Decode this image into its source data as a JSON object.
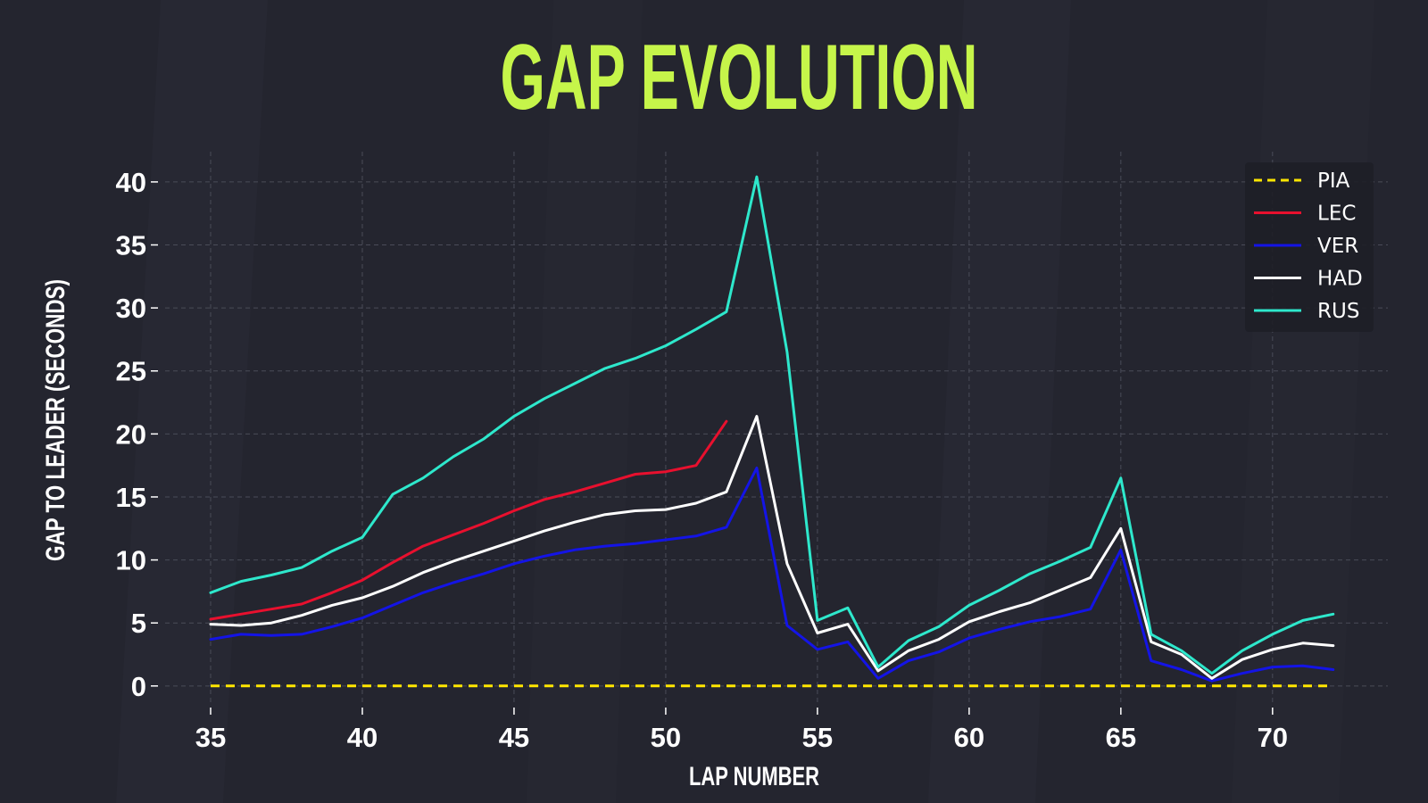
{
  "chart_data": {
    "type": "line",
    "title": "GAP EVOLUTION",
    "xlabel": "LAP NUMBER",
    "ylabel": "GAP TO LEADER (SECONDS)",
    "xlim": [
      33.5,
      73.8
    ],
    "ylim": [
      -1.5,
      42.4
    ],
    "xticks": [
      35,
      40,
      45,
      50,
      55,
      60,
      65,
      70
    ],
    "yticks": [
      0,
      5,
      10,
      15,
      20,
      25,
      30,
      35,
      40
    ],
    "grid": true,
    "legend_position": "top-right",
    "series": [
      {
        "name": "PIA",
        "color": "#ffe600",
        "dashed": true,
        "x": [
          35,
          36,
          37,
          38,
          39,
          40,
          41,
          42,
          43,
          44,
          45,
          46,
          47,
          48,
          49,
          50,
          51,
          52,
          53,
          54,
          55,
          56,
          57,
          58,
          59,
          60,
          61,
          62,
          63,
          64,
          65,
          66,
          67,
          68,
          69,
          70,
          71,
          72
        ],
        "y": [
          0,
          0,
          0,
          0,
          0,
          0,
          0,
          0,
          0,
          0,
          0,
          0,
          0,
          0,
          0,
          0,
          0,
          0,
          0,
          0,
          0,
          0,
          0,
          0,
          0,
          0,
          0,
          0,
          0,
          0,
          0,
          0,
          0,
          0,
          0,
          0,
          0,
          0
        ]
      },
      {
        "name": "LEC",
        "color": "#e8102e",
        "dashed": false,
        "x": [
          35,
          36,
          37,
          38,
          39,
          40,
          41,
          42,
          43,
          44,
          45,
          46,
          47,
          48,
          49,
          50,
          51,
          52
        ],
        "y": [
          5.3,
          5.7,
          6.1,
          6.5,
          7.4,
          8.4,
          9.8,
          11.1,
          12.0,
          12.9,
          13.9,
          14.8,
          15.4,
          16.1,
          16.8,
          17.0,
          17.5,
          21.0
        ]
      },
      {
        "name": "VER",
        "color": "#1414e6",
        "dashed": false,
        "x": [
          35,
          36,
          37,
          38,
          39,
          40,
          41,
          42,
          43,
          44,
          45,
          46,
          47,
          48,
          49,
          50,
          51,
          52,
          53,
          54,
          55,
          56,
          57,
          58,
          59,
          60,
          61,
          62,
          63,
          64,
          65,
          66,
          67,
          68,
          69,
          70,
          71,
          72
        ],
        "y": [
          3.7,
          4.1,
          4.0,
          4.1,
          4.7,
          5.4,
          6.4,
          7.4,
          8.2,
          8.9,
          9.7,
          10.3,
          10.8,
          11.1,
          11.3,
          11.6,
          11.9,
          12.6,
          17.3,
          4.8,
          2.9,
          3.5,
          0.6,
          2.0,
          2.7,
          3.8,
          4.5,
          5.1,
          5.5,
          6.1,
          10.8,
          2.0,
          1.3,
          0.4,
          1.0,
          1.5,
          1.6,
          1.3
        ]
      },
      {
        "name": "HAD",
        "color": "#ffffff",
        "dashed": false,
        "x": [
          35,
          36,
          37,
          38,
          39,
          40,
          41,
          42,
          43,
          44,
          45,
          46,
          47,
          48,
          49,
          50,
          51,
          52,
          53,
          54,
          55,
          56,
          57,
          58,
          59,
          60,
          61,
          62,
          63,
          64,
          65,
          66,
          67,
          68,
          69,
          70,
          71,
          72
        ],
        "y": [
          4.9,
          4.8,
          5.0,
          5.6,
          6.4,
          7.0,
          7.9,
          9.0,
          9.9,
          10.7,
          11.5,
          12.3,
          13.0,
          13.6,
          13.9,
          14.0,
          14.5,
          15.4,
          21.4,
          9.7,
          4.2,
          4.9,
          1.2,
          2.8,
          3.7,
          5.1,
          5.9,
          6.6,
          7.6,
          8.6,
          12.5,
          3.5,
          2.5,
          0.6,
          2.1,
          2.9,
          3.4,
          3.2
        ]
      },
      {
        "name": "RUS",
        "color": "#2ee8cc",
        "dashed": false,
        "x": [
          35,
          36,
          37,
          38,
          39,
          40,
          41,
          42,
          43,
          44,
          45,
          46,
          47,
          48,
          49,
          50,
          51,
          52,
          53,
          54,
          55,
          56,
          57,
          58,
          59,
          60,
          61,
          62,
          63,
          64,
          65,
          66,
          67,
          68,
          69,
          70,
          71,
          72
        ],
        "y": [
          7.4,
          8.3,
          8.8,
          9.4,
          10.7,
          11.8,
          15.2,
          16.5,
          18.2,
          19.6,
          21.4,
          22.8,
          24.0,
          25.2,
          26.0,
          27.0,
          28.3,
          29.7,
          40.4,
          26.5,
          5.2,
          6.2,
          1.5,
          3.6,
          4.7,
          6.4,
          7.6,
          8.9,
          9.9,
          11.0,
          16.5,
          4.1,
          2.8,
          1.0,
          2.8,
          4.1,
          5.2,
          5.7
        ]
      }
    ]
  }
}
